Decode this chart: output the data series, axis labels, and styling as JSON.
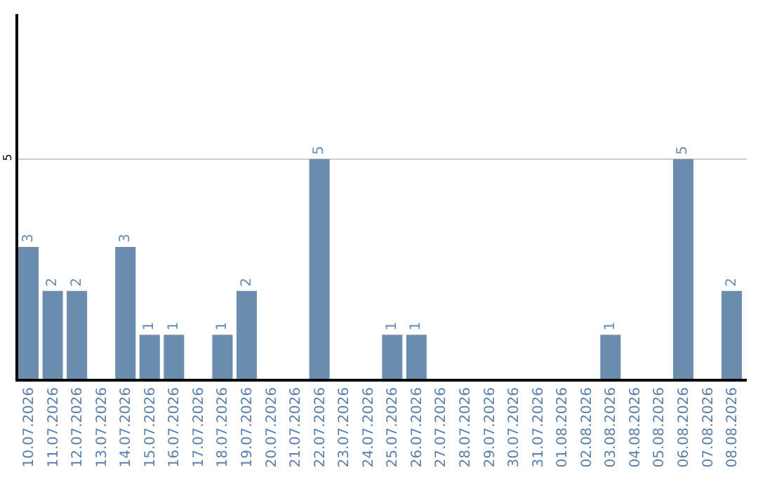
{
  "chart_data": {
    "type": "bar",
    "categories": [
      "10.07.2026",
      "11.07.2026",
      "12.07.2026",
      "13.07.2026",
      "14.07.2026",
      "15.07.2026",
      "16.07.2026",
      "17.07.2026",
      "18.07.2026",
      "19.07.2026",
      "20.07.2026",
      "21.07.2026",
      "22.07.2026",
      "23.07.2026",
      "24.07.2026",
      "25.07.2026",
      "26.07.2026",
      "27.07.2026",
      "28.07.2026",
      "29.07.2026",
      "30.07.2026",
      "31.07.2026",
      "01.08.2026",
      "02.08.2026",
      "03.08.2026",
      "04.08.2026",
      "05.08.2026",
      "06.08.2026",
      "07.08.2026",
      "08.08.2026"
    ],
    "values": [
      3,
      2,
      2,
      0,
      3,
      1,
      1,
      0,
      1,
      2,
      0,
      0,
      5,
      0,
      0,
      1,
      1,
      0,
      0,
      0,
      0,
      0,
      0,
      0,
      1,
      0,
      0,
      5,
      0,
      2
    ],
    "value_labels": [
      "3",
      "2",
      "2",
      null,
      "3",
      "1",
      "1",
      null,
      "1",
      "2",
      null,
      null,
      "5",
      null,
      null,
      "1",
      "1",
      null,
      null,
      null,
      null,
      null,
      null,
      null,
      "1",
      null,
      null,
      "5",
      null,
      "2"
    ],
    "color": "#6a8caf",
    "ylim": [
      0,
      8.3
    ],
    "yticks": [
      5
    ],
    "grid": "y",
    "legend": false
  }
}
